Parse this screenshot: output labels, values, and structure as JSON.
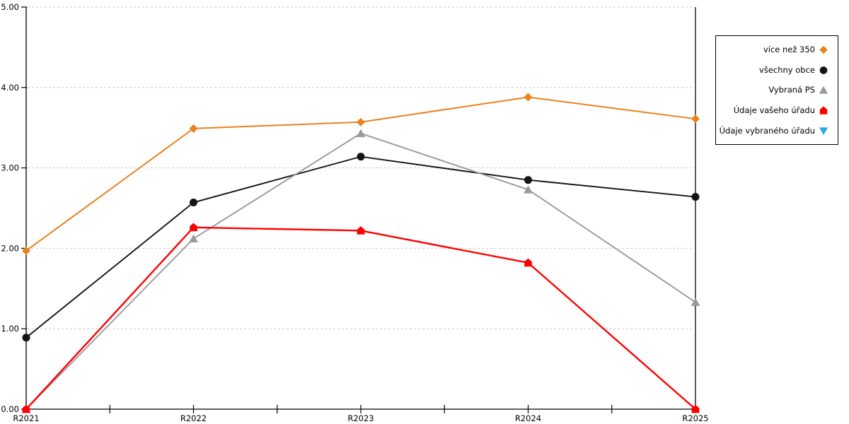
{
  "chart_data": {
    "type": "line",
    "title": "",
    "xlabel": "",
    "ylabel": "",
    "categories": [
      "R2021",
      "R2022",
      "R2023",
      "R2024",
      "R2025"
    ],
    "y_ticks": [
      "0.00",
      "1.00",
      "2.00",
      "3.00",
      "4.00",
      "5.00"
    ],
    "ylim": [
      0,
      5
    ],
    "grid": "horizontal-dashed",
    "legend_position": "right",
    "series": [
      {
        "name": "více než 350",
        "color": "#E8821E",
        "marker": "diamond",
        "values": [
          1.97,
          3.49,
          3.57,
          3.88,
          3.61
        ]
      },
      {
        "name": "všechny obce",
        "color": "#141414",
        "marker": "circle",
        "values": [
          0.89,
          2.57,
          3.14,
          2.85,
          2.64
        ]
      },
      {
        "name": "Vybraná PS",
        "color": "#999999",
        "marker": "triangle-up",
        "values": [
          0.0,
          2.12,
          3.43,
          2.73,
          1.33
        ]
      },
      {
        "name": "Údaje vašeho úřadu",
        "color": "#FF0000",
        "marker": "pentagon",
        "values": [
          0.0,
          2.26,
          2.22,
          1.82,
          0.0
        ]
      },
      {
        "name": "Údaje vybraného úřadu",
        "color": "#29ABE2",
        "marker": "triangle-down",
        "values": [
          null,
          null,
          null,
          null,
          null
        ]
      }
    ]
  },
  "colors": {
    "gridline": "#C6C6C6",
    "axis": "#000000",
    "background": "#FFFFFF",
    "legend_border": "#000000"
  }
}
